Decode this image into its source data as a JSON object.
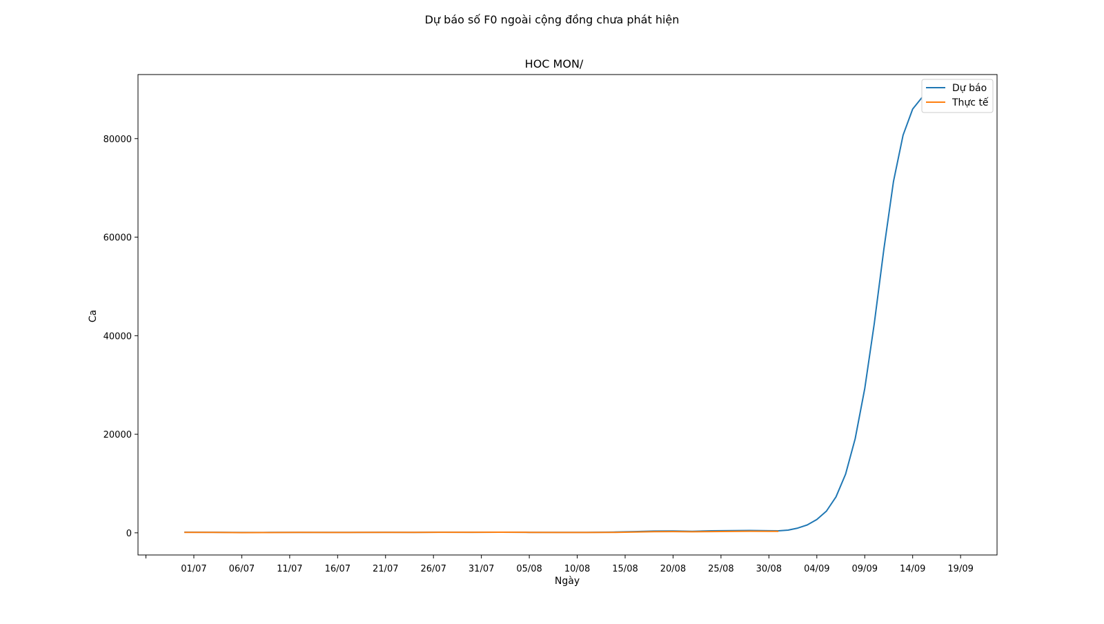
{
  "chart_data": {
    "type": "line",
    "suptitle": "Dự báo số F0 ngoài cộng đồng chưa phát hiện",
    "title": "HOC MON/",
    "xlabel": "Ngày",
    "ylabel": "Ca",
    "x_ticks": [
      "",
      "01/07",
      "06/07",
      "11/07",
      "16/07",
      "21/07",
      "26/07",
      "31/07",
      "05/08",
      "10/08",
      "15/08",
      "20/08",
      "25/08",
      "30/08",
      "04/09",
      "09/09",
      "14/09",
      "19/09"
    ],
    "y_ticks": [
      0,
      20000,
      40000,
      60000,
      80000
    ],
    "ylim": [
      -4500,
      93000
    ],
    "legend": {
      "location": "upper right"
    },
    "grid": false,
    "series": [
      {
        "name": "Dự báo",
        "color": "#1f77b4",
        "points": [
          [
            "2021-06-28",
            120
          ],
          [
            "2021-07-01",
            110
          ],
          [
            "2021-07-04",
            60
          ],
          [
            "2021-07-07",
            80
          ],
          [
            "2021-07-10",
            100
          ],
          [
            "2021-07-13",
            90
          ],
          [
            "2021-07-16",
            100
          ],
          [
            "2021-07-19",
            110
          ],
          [
            "2021-07-22",
            100
          ],
          [
            "2021-07-25",
            120
          ],
          [
            "2021-07-28",
            110
          ],
          [
            "2021-07-31",
            120
          ],
          [
            "2021-08-03",
            100
          ],
          [
            "2021-08-06",
            90
          ],
          [
            "2021-08-09",
            100
          ],
          [
            "2021-08-12",
            150
          ],
          [
            "2021-08-14",
            250
          ],
          [
            "2021-08-16",
            350
          ],
          [
            "2021-08-18",
            380
          ],
          [
            "2021-08-20",
            300
          ],
          [
            "2021-08-22",
            400
          ],
          [
            "2021-08-24",
            430
          ],
          [
            "2021-08-26",
            480
          ],
          [
            "2021-08-28",
            420
          ],
          [
            "2021-08-29",
            400
          ],
          [
            "2021-08-30",
            550
          ],
          [
            "2021-08-31",
            950
          ],
          [
            "2021-09-01",
            1600
          ],
          [
            "2021-09-02",
            2700
          ],
          [
            "2021-09-03",
            4400
          ],
          [
            "2021-09-04",
            7300
          ],
          [
            "2021-09-05",
            11900
          ],
          [
            "2021-09-06",
            19100
          ],
          [
            "2021-09-07",
            29300
          ],
          [
            "2021-09-08",
            42500
          ],
          [
            "2021-09-09",
            57600
          ],
          [
            "2021-09-10",
            71300
          ],
          [
            "2021-09-11",
            80700
          ],
          [
            "2021-09-12",
            86000
          ],
          [
            "2021-09-13",
            88400
          ]
        ]
      },
      {
        "name": "Thực tế",
        "color": "#ff7f0e",
        "points": [
          [
            "2021-06-28",
            100
          ],
          [
            "2021-07-01",
            90
          ],
          [
            "2021-07-04",
            40
          ],
          [
            "2021-07-07",
            50
          ],
          [
            "2021-07-10",
            80
          ],
          [
            "2021-07-13",
            70
          ],
          [
            "2021-07-16",
            80
          ],
          [
            "2021-07-19",
            90
          ],
          [
            "2021-07-22",
            100
          ],
          [
            "2021-07-25",
            110
          ],
          [
            "2021-07-28",
            110
          ],
          [
            "2021-07-31",
            120
          ],
          [
            "2021-08-03",
            90
          ],
          [
            "2021-08-06",
            70
          ],
          [
            "2021-08-09",
            60
          ],
          [
            "2021-08-12",
            100
          ],
          [
            "2021-08-14",
            160
          ],
          [
            "2021-08-16",
            220
          ],
          [
            "2021-08-18",
            250
          ],
          [
            "2021-08-20",
            200
          ],
          [
            "2021-08-22",
            250
          ],
          [
            "2021-08-24",
            280
          ],
          [
            "2021-08-26",
            320
          ],
          [
            "2021-08-28",
            300
          ],
          [
            "2021-08-29",
            290
          ]
        ]
      }
    ]
  }
}
